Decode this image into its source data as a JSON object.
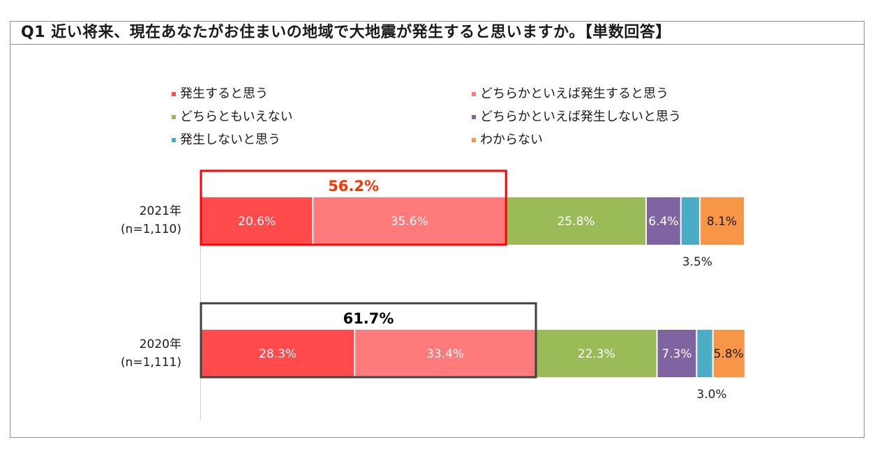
{
  "title": "Q1 近い将来、現在あなたがお住まいの地域で大地震が発生すると思いますか。【単数回答】",
  "legend": [
    {
      "label": "発生すると思う",
      "color": "#ff4b4b"
    },
    {
      "label": "どちらかといえば発生すると思う",
      "color": "#ff7a7a"
    },
    {
      "label": "どちらともいえない",
      "color": "#9bbb59"
    },
    {
      "label": "どちらかといえば発生しないと思う",
      "color": "#8064a2"
    },
    {
      "label": "発生しないと思う",
      "color": "#4bacc6"
    },
    {
      "label": "わからない",
      "color": "#f79646"
    }
  ],
  "chart_data": {
    "type": "bar",
    "orientation": "horizontal",
    "stacked": true,
    "categories": [
      {
        "year": "2021年",
        "n": "(n=1,110)"
      },
      {
        "year": "2020年",
        "n": "(n=1,111)"
      }
    ],
    "series": [
      {
        "name": "発生すると思う",
        "values": [
          20.6,
          28.3
        ],
        "labels": [
          "20.6%",
          "28.3%"
        ]
      },
      {
        "name": "どちらかといえば発生すると思う",
        "values": [
          35.6,
          33.4
        ],
        "labels": [
          "35.6%",
          "33.4%"
        ]
      },
      {
        "name": "どちらともいえない",
        "values": [
          25.8,
          22.3
        ],
        "labels": [
          "25.8%",
          "22.3%"
        ]
      },
      {
        "name": "どちらかといえば発生しないと思う",
        "values": [
          6.4,
          7.3
        ],
        "labels": [
          "6.4%",
          "7.3%"
        ]
      },
      {
        "name": "発生しないと思う",
        "values": [
          3.5,
          3.0
        ],
        "labels": [
          "3.5%",
          "3.0%"
        ]
      },
      {
        "name": "わからない",
        "values": [
          8.1,
          5.8
        ],
        "labels": [
          "8.1%",
          "5.8%"
        ]
      }
    ],
    "highlight": [
      {
        "label": "56.2%",
        "color": "#ff0000",
        "text_color": "#ff3300"
      },
      {
        "label": "61.7%",
        "color": "#404040",
        "text_color": "#000000"
      }
    ],
    "xlim": [
      0,
      100
    ],
    "legend_position": "top",
    "grid": false
  }
}
